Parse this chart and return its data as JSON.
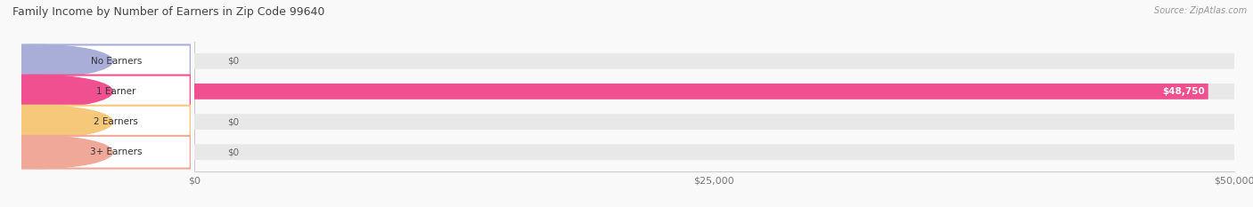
{
  "title": "Family Income by Number of Earners in Zip Code 99640",
  "source": "Source: ZipAtlas.com",
  "categories": [
    "No Earners",
    "1 Earner",
    "2 Earners",
    "3+ Earners"
  ],
  "values": [
    0,
    48750,
    0,
    0
  ],
  "max_value": 50000,
  "bar_colors": [
    "#a8aed8",
    "#f05090",
    "#f5c87a",
    "#f0a898"
  ],
  "track_color": "#e8e8e8",
  "background_color": "#f9f9f9",
  "x_ticks": [
    0,
    25000,
    50000
  ],
  "x_tick_labels": [
    "$0",
    "$25,000",
    "$50,000"
  ],
  "value_labels": [
    "$0",
    "$48,750",
    "$0",
    "$0"
  ]
}
